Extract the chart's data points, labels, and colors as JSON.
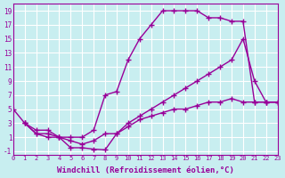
{
  "title": "",
  "xlabel": "Windchill (Refroidissement éolien,°C)",
  "ylabel": "",
  "bg_color": "#c8eef0",
  "line_color": "#990099",
  "grid_color": "#ffffff",
  "xlim": [
    0,
    23
  ],
  "ylim": [
    -1.5,
    20
  ],
  "xticks": [
    0,
    1,
    2,
    3,
    4,
    5,
    6,
    7,
    8,
    9,
    10,
    11,
    12,
    13,
    14,
    15,
    16,
    17,
    18,
    19,
    20,
    21,
    22,
    23
  ],
  "yticks": [
    -1,
    1,
    3,
    5,
    7,
    9,
    11,
    13,
    15,
    17,
    19
  ],
  "line1_x": [
    0,
    1,
    2,
    3,
    4,
    5,
    6,
    7,
    8,
    9,
    10,
    11,
    12,
    13,
    14,
    15,
    16,
    17,
    18,
    19,
    20,
    21,
    22,
    23
  ],
  "line1_y": [
    5,
    3,
    2,
    2,
    1,
    1,
    1,
    2,
    7,
    7.5,
    12,
    15,
    17,
    19,
    19,
    19,
    19,
    18,
    18,
    17.5,
    17.5,
    6,
    6,
    6
  ],
  "line2_x": [
    1,
    2,
    3,
    4,
    5,
    6,
    7,
    8,
    9,
    10,
    11,
    12,
    13,
    14,
    15,
    16,
    17,
    18,
    19,
    20,
    21,
    22,
    23
  ],
  "line2_y": [
    3,
    1.5,
    1,
    1,
    0.5,
    0,
    0.5,
    1.5,
    1.5,
    2.5,
    3.5,
    4,
    4.5,
    5,
    5,
    5.5,
    6,
    6,
    6.5,
    6,
    6,
    6,
    6
  ],
  "line3_x": [
    1,
    2,
    3,
    4,
    5,
    6,
    7,
    8,
    9,
    10,
    11,
    12,
    13,
    14,
    15,
    16,
    17,
    18,
    19,
    20,
    21,
    22,
    23
  ],
  "line3_y": [
    3,
    1.5,
    1.5,
    1,
    -0.5,
    -0.5,
    -0.7,
    -0.8,
    1.5,
    3,
    4,
    5,
    6,
    7,
    8,
    9,
    10,
    11,
    12,
    15,
    9,
    6,
    6
  ]
}
